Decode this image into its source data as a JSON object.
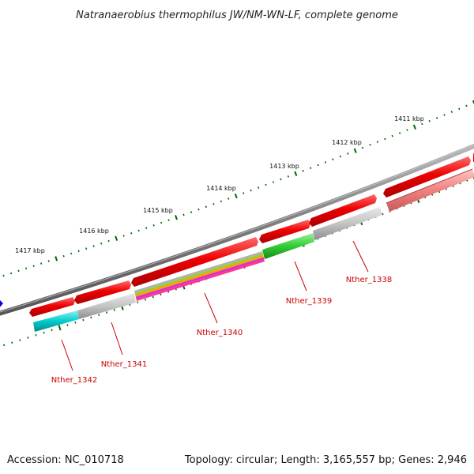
{
  "title": "Natranaerobius thermophilus JW/NM-WN-LF, complete genome",
  "footer": {
    "accession": "Accession: NC_010718",
    "topology": "Topology: circular; Length: 3,165,557 bp; Genes: 2,946"
  },
  "scale": {
    "tick_labels": [
      "1411 kbp",
      "1412 kbp",
      "1413 kbp",
      "1414 kbp",
      "1415 kbp",
      "1416 kbp",
      "1417 kbp"
    ]
  },
  "genes": [
    {
      "name": "Nther_1338",
      "cog_colors": [
        "#c8c8c8"
      ],
      "label_color": "#cc0000"
    },
    {
      "name": "Nther_1339",
      "cog_colors": [
        "#33cc33"
      ],
      "label_color": "#cc0000"
    },
    {
      "name": "Nther_1340",
      "cog_colors": [
        "#b0b0b0",
        "#99cc33",
        "#ff9900",
        "#cc33cc",
        "#ff3399"
      ],
      "label_color": "#cc0000"
    },
    {
      "name": "Nther_1341",
      "cog_colors": [
        "#c0c0c0"
      ],
      "label_color": "#cc0000"
    },
    {
      "name": "Nther_1342",
      "cog_colors": [
        "#00cccc"
      ],
      "label_color": "#cc0000"
    }
  ],
  "colors": {
    "backbone": "#808080",
    "cds": "#ff0000",
    "cds_faded": "#f08080",
    "tick": "#006600",
    "label_line": "#cc0000",
    "other_strand_marker": "#0000ee"
  }
}
